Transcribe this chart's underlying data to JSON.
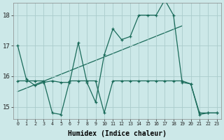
{
  "xlabel": "Humidex (Indice chaleur)",
  "background_color": "#cce8e8",
  "grid_color": "#aacccc",
  "line_color": "#1a6b5a",
  "ylim": [
    14.6,
    18.4
  ],
  "xlim": [
    -0.5,
    23.5
  ],
  "series1_x": [
    0,
    1,
    2,
    3,
    4,
    5,
    6,
    7,
    8,
    9,
    10,
    11,
    12,
    13,
    14,
    15,
    16,
    17,
    18,
    19,
    20,
    21,
    22,
    23
  ],
  "series1_y": [
    17.0,
    15.9,
    15.7,
    15.8,
    15.85,
    15.8,
    15.8,
    17.1,
    15.8,
    15.15,
    16.7,
    17.55,
    17.2,
    17.3,
    18.0,
    18.0,
    18.0,
    18.5,
    18.0,
    15.8,
    15.75,
    14.75,
    14.8,
    14.8
  ],
  "series2_x": [
    0,
    1,
    2,
    3,
    4,
    5,
    6,
    7,
    8,
    9,
    10,
    11,
    12,
    13,
    14,
    15,
    16,
    17,
    18,
    19,
    20,
    21,
    22,
    23
  ],
  "series2_y": [
    15.85,
    15.85,
    15.85,
    15.85,
    14.8,
    14.75,
    15.85,
    15.85,
    15.85,
    15.85,
    14.8,
    15.85,
    15.85,
    15.85,
    15.85,
    15.85,
    15.85,
    15.85,
    15.85,
    15.85,
    15.75,
    14.8,
    14.8,
    14.8
  ],
  "trendline_x": [
    0,
    19
  ],
  "trendline_y": [
    15.5,
    17.65
  ],
  "yticks": [
    15,
    16,
    17,
    18
  ],
  "xticks": [
    0,
    1,
    2,
    3,
    4,
    5,
    6,
    7,
    8,
    9,
    10,
    11,
    12,
    13,
    14,
    15,
    16,
    17,
    18,
    19,
    20,
    21,
    22,
    23
  ]
}
